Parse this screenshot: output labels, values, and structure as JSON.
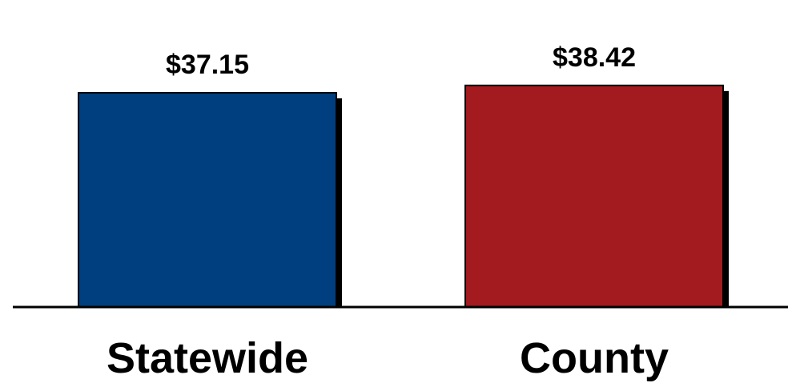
{
  "chart_data": {
    "type": "bar",
    "categories": [
      "Statewide",
      "County"
    ],
    "values": [
      37.15,
      38.42
    ],
    "value_labels": [
      "$37.15",
      "$38.42"
    ],
    "title": "",
    "xlabel": "",
    "ylabel": "",
    "grid": false,
    "legend": "none",
    "colors": {
      "bars": [
        "#003F7F",
        "#A31B1E"
      ],
      "shadow": "#000000",
      "axis": "#000000"
    }
  }
}
